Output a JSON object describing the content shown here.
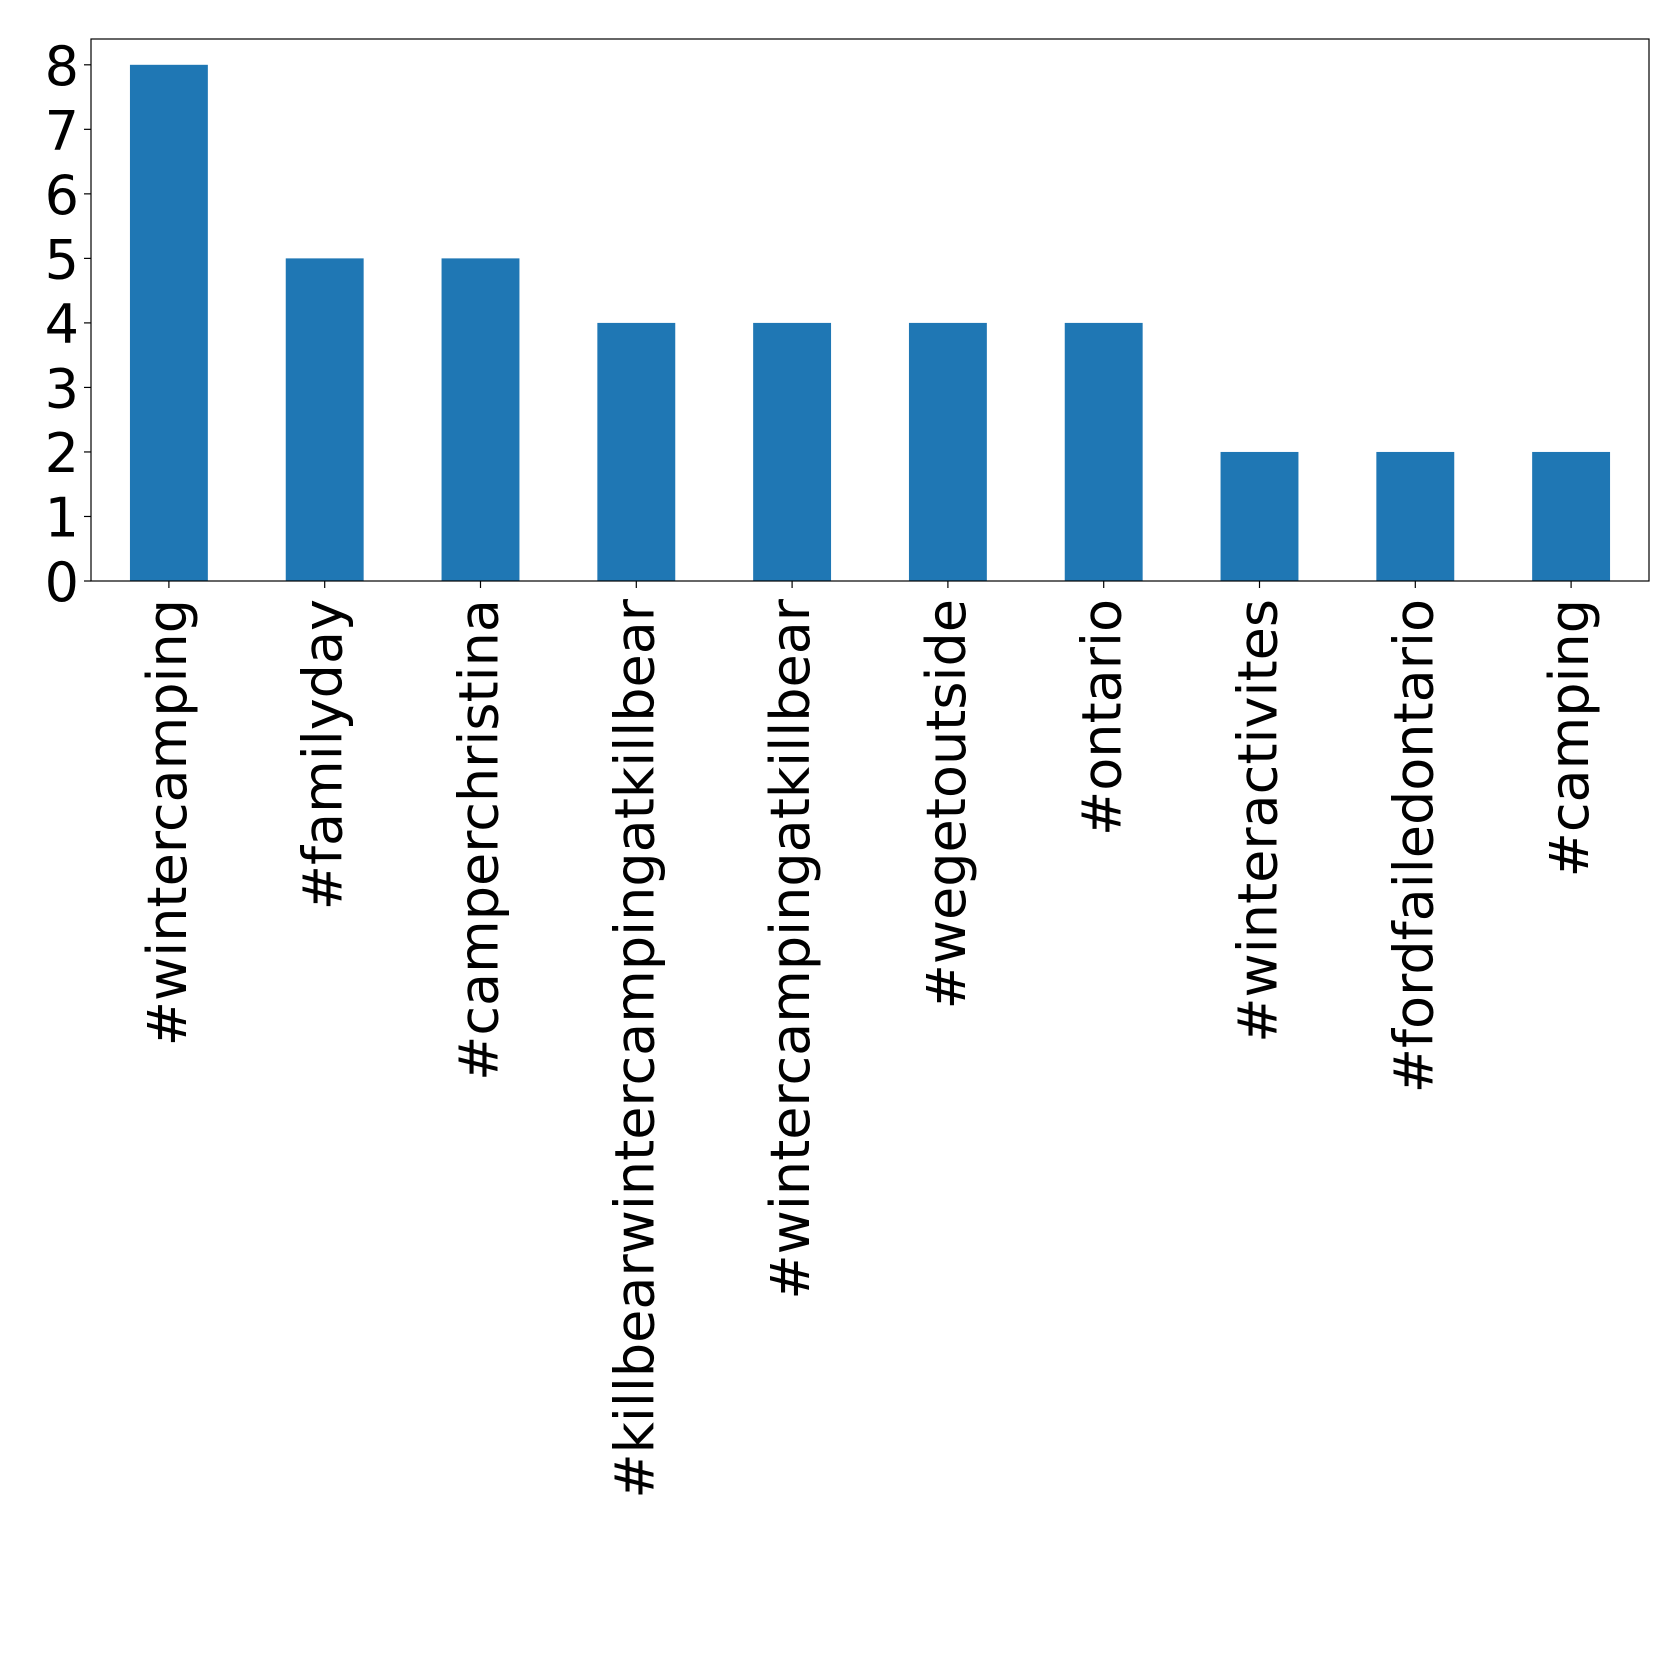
{
  "chart_data": {
    "type": "bar",
    "title": "",
    "xlabel": "",
    "ylabel": "",
    "categories": [
      "#wintercamping",
      "#familyday",
      "#camperchristina",
      "#killbearwintercampingatkillbear",
      "#wintercampingatkillbear",
      "#wegetoutside",
      "#ontario",
      "#winteractivites",
      "#fordfailedontario",
      "#camping"
    ],
    "values": [
      8,
      5,
      5,
      4,
      4,
      4,
      4,
      2,
      2,
      2
    ],
    "yticks": [
      "0",
      "1",
      "2",
      "3",
      "4",
      "5",
      "6",
      "7",
      "8"
    ],
    "ylim": [
      0,
      8.4
    ],
    "grid": false,
    "legend": "none",
    "bar_color": "#1f77b4"
  }
}
